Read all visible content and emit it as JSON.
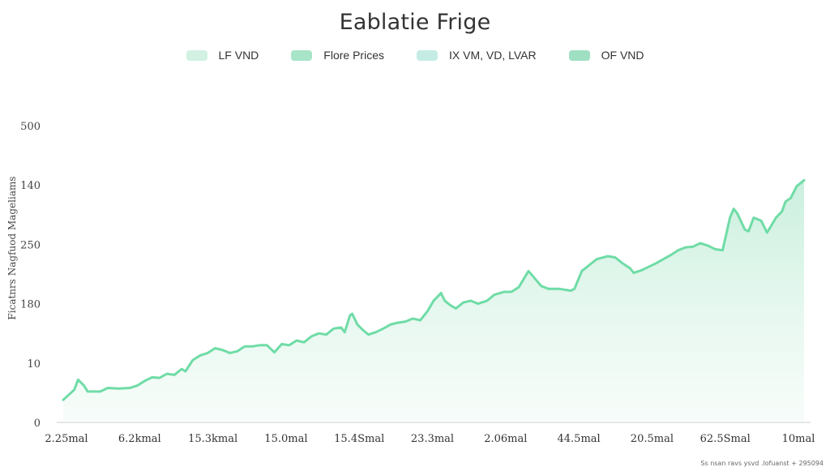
{
  "chart_data": {
    "type": "area",
    "title": "Eablatie Frige",
    "ylabel": "Ficatnrs Nagfuod Mageliams",
    "xlabel": "",
    "legend": {
      "placement": "top-center",
      "items": [
        {
          "label": "LF VND",
          "color": "#d2f1e3"
        },
        {
          "label": "Flore Prices",
          "color": "#a8e4c8"
        },
        {
          "label": "IX VM, VD, LVAR",
          "color": "#c4ece4"
        },
        {
          "label": "OF VND",
          "color": "#9fdfc2"
        }
      ]
    },
    "y_ticks": [
      {
        "label": "0",
        "value": 0
      },
      {
        "label": "10",
        "value": 1
      },
      {
        "label": "180",
        "value": 2
      },
      {
        "label": "250",
        "value": 3
      },
      {
        "label": "140",
        "value": 4
      },
      {
        "label": "500",
        "value": 5
      }
    ],
    "ylim": [
      0,
      5
    ],
    "x_ticks": [
      "2.25mal",
      "6.2kmal",
      "15.3kmal",
      "15.0mal",
      "15.4Smal",
      "23.3mal",
      "2.06mal",
      "44.5mal",
      "20.5mal",
      "62.5Smal",
      "10mal"
    ],
    "xlim": [
      0,
      10
    ],
    "grid": false,
    "line_color": "#6fdca6",
    "series": [
      {
        "values": [
          [
            0.0,
            0.38
          ],
          [
            0.15,
            0.55
          ],
          [
            0.2,
            0.72
          ],
          [
            0.28,
            0.62
          ],
          [
            0.33,
            0.52
          ],
          [
            0.5,
            0.52
          ],
          [
            0.6,
            0.58
          ],
          [
            0.75,
            0.57
          ],
          [
            0.9,
            0.58
          ],
          [
            1.0,
            0.62
          ],
          [
            1.1,
            0.7
          ],
          [
            1.2,
            0.76
          ],
          [
            1.3,
            0.75
          ],
          [
            1.4,
            0.82
          ],
          [
            1.5,
            0.8
          ],
          [
            1.6,
            0.9
          ],
          [
            1.65,
            0.86
          ],
          [
            1.75,
            1.05
          ],
          [
            1.85,
            1.13
          ],
          [
            1.95,
            1.17
          ],
          [
            2.05,
            1.25
          ],
          [
            2.15,
            1.22
          ],
          [
            2.25,
            1.17
          ],
          [
            2.35,
            1.2
          ],
          [
            2.45,
            1.28
          ],
          [
            2.55,
            1.28
          ],
          [
            2.65,
            1.3
          ],
          [
            2.75,
            1.3
          ],
          [
            2.85,
            1.18
          ],
          [
            2.95,
            1.32
          ],
          [
            3.05,
            1.3
          ],
          [
            3.15,
            1.38
          ],
          [
            3.25,
            1.35
          ],
          [
            3.35,
            1.45
          ],
          [
            3.45,
            1.5
          ],
          [
            3.55,
            1.48
          ],
          [
            3.65,
            1.58
          ],
          [
            3.75,
            1.6
          ],
          [
            3.8,
            1.52
          ],
          [
            3.87,
            1.8
          ],
          [
            3.9,
            1.83
          ],
          [
            3.97,
            1.65
          ],
          [
            4.05,
            1.55
          ],
          [
            4.12,
            1.48
          ],
          [
            4.22,
            1.52
          ],
          [
            4.32,
            1.58
          ],
          [
            4.42,
            1.65
          ],
          [
            4.52,
            1.68
          ],
          [
            4.62,
            1.7
          ],
          [
            4.72,
            1.75
          ],
          [
            4.82,
            1.72
          ],
          [
            4.92,
            1.88
          ],
          [
            5.0,
            2.05
          ],
          [
            5.1,
            2.18
          ],
          [
            5.15,
            2.05
          ],
          [
            5.22,
            1.98
          ],
          [
            5.3,
            1.92
          ],
          [
            5.4,
            2.02
          ],
          [
            5.5,
            2.05
          ],
          [
            5.6,
            2.0
          ],
          [
            5.72,
            2.05
          ],
          [
            5.82,
            2.15
          ],
          [
            5.95,
            2.2
          ],
          [
            6.05,
            2.2
          ],
          [
            6.15,
            2.28
          ],
          [
            6.28,
            2.55
          ],
          [
            6.35,
            2.45
          ],
          [
            6.45,
            2.3
          ],
          [
            6.55,
            2.25
          ],
          [
            6.7,
            2.25
          ],
          [
            6.85,
            2.22
          ],
          [
            6.9,
            2.25
          ],
          [
            7.0,
            2.55
          ],
          [
            7.1,
            2.65
          ],
          [
            7.2,
            2.75
          ],
          [
            7.35,
            2.8
          ],
          [
            7.45,
            2.78
          ],
          [
            7.55,
            2.68
          ],
          [
            7.65,
            2.6
          ],
          [
            7.7,
            2.52
          ],
          [
            7.8,
            2.56
          ],
          [
            7.9,
            2.62
          ],
          [
            8.0,
            2.68
          ],
          [
            8.1,
            2.75
          ],
          [
            8.2,
            2.82
          ],
          [
            8.3,
            2.9
          ],
          [
            8.4,
            2.95
          ],
          [
            8.5,
            2.96
          ],
          [
            8.6,
            3.02
          ],
          [
            8.7,
            2.98
          ],
          [
            8.8,
            2.92
          ],
          [
            8.9,
            2.9
          ],
          [
            9.0,
            3.45
          ],
          [
            9.05,
            3.6
          ],
          [
            9.1,
            3.52
          ],
          [
            9.2,
            3.25
          ],
          [
            9.25,
            3.22
          ],
          [
            9.32,
            3.45
          ],
          [
            9.42,
            3.4
          ],
          [
            9.5,
            3.2
          ],
          [
            9.55,
            3.3
          ],
          [
            9.62,
            3.45
          ],
          [
            9.7,
            3.55
          ],
          [
            9.75,
            3.72
          ],
          [
            9.82,
            3.78
          ],
          [
            9.9,
            3.98
          ],
          [
            10.0,
            4.08
          ]
        ]
      }
    ]
  },
  "footer": {
    "source": "Ss nsan ravs ysvd .lofuanst + 295094"
  }
}
